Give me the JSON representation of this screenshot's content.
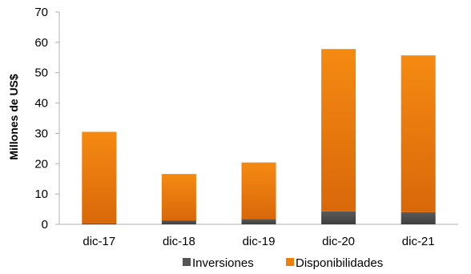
{
  "chart_data": {
    "type": "bar",
    "stacked": true,
    "categories": [
      "dic-17",
      "dic-18",
      "dic-19",
      "dic-20",
      "dic-21"
    ],
    "series": [
      {
        "name": "Inversiones",
        "values": [
          0.3,
          1.3,
          1.8,
          4.3,
          4.0
        ],
        "color": "#555555"
      },
      {
        "name": "Disponibilidades",
        "values": [
          30.2,
          15.3,
          18.6,
          53.5,
          51.7
        ],
        "color": "#f07f09"
      }
    ],
    "title": "",
    "xlabel": "",
    "ylabel": "Millones de US$",
    "ylim": [
      0,
      70
    ],
    "yticks": [
      0,
      10,
      20,
      30,
      40,
      50,
      60,
      70
    ],
    "grid": false,
    "legend_position": "bottom"
  }
}
